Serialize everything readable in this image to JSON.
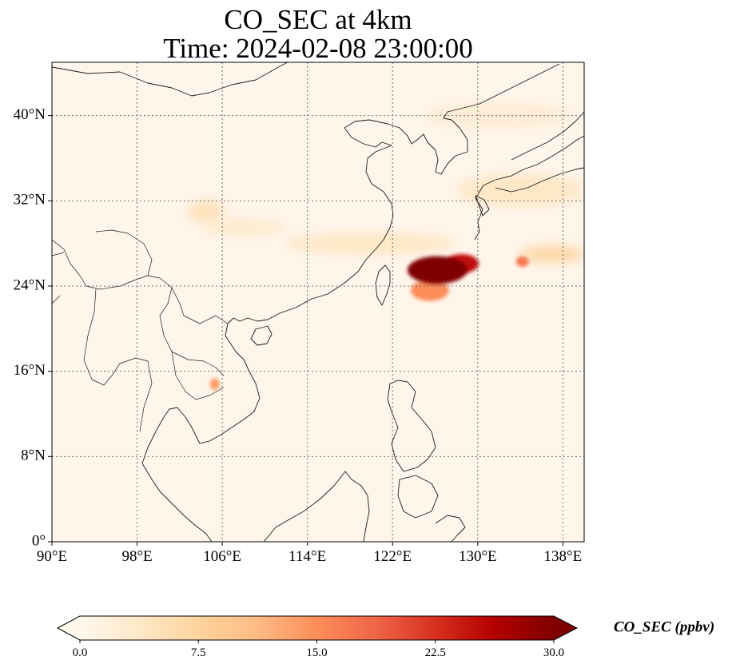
{
  "title": {
    "line1": "CO_SEC at 4km",
    "line2": "Time: 2024-02-08 23:00:00"
  },
  "map": {
    "lon_range": [
      90,
      140
    ],
    "lat_range": [
      0,
      45
    ],
    "lon_ticks": [
      {
        "value": 90,
        "label": "90°E"
      },
      {
        "value": 98,
        "label": "98°E"
      },
      {
        "value": 106,
        "label": "106°E"
      },
      {
        "value": 114,
        "label": "114°E"
      },
      {
        "value": 122,
        "label": "122°E"
      },
      {
        "value": 130,
        "label": "130°E"
      },
      {
        "value": 138,
        "label": "138°E"
      }
    ],
    "lat_ticks": [
      {
        "value": 0,
        "label": "0°"
      },
      {
        "value": 8,
        "label": "8°N"
      },
      {
        "value": 16,
        "label": "16°N"
      },
      {
        "value": 24,
        "label": "24°N"
      },
      {
        "value": 32,
        "label": "32°N"
      },
      {
        "value": 40,
        "label": "40°N"
      }
    ],
    "gridlines": true,
    "background_color": "#fff5eb",
    "colormap": "OrRd",
    "plumes": [
      {
        "lon": 126.2,
        "lat": 25.5,
        "rx": 2.8,
        "ry": 1.3,
        "value": 30
      },
      {
        "lon": 128.5,
        "lat": 26.1,
        "rx": 1.6,
        "ry": 0.9,
        "value": 25
      },
      {
        "lon": 125.5,
        "lat": 23.6,
        "rx": 1.8,
        "ry": 1.0,
        "value": 15
      },
      {
        "lon": 134.2,
        "lat": 26.3,
        "rx": 0.6,
        "ry": 0.5,
        "value": 17
      },
      {
        "lon": 105.3,
        "lat": 14.8,
        "rx": 0.45,
        "ry": 0.55,
        "value": 14
      },
      {
        "lon": 137.0,
        "lat": 27.0,
        "rx": 3.0,
        "ry": 0.8,
        "value": 7
      },
      {
        "lon": 134.0,
        "lat": 33.0,
        "rx": 6.0,
        "ry": 1.5,
        "value": 4
      },
      {
        "lon": 120.0,
        "lat": 28.0,
        "rx": 8.0,
        "ry": 1.0,
        "value": 4
      },
      {
        "lon": 104.5,
        "lat": 31.0,
        "rx": 1.7,
        "ry": 1.0,
        "value": 5
      },
      {
        "lon": 108.0,
        "lat": 29.5,
        "rx": 4.0,
        "ry": 0.8,
        "value": 3
      },
      {
        "lon": 132.0,
        "lat": 40.0,
        "rx": 7.0,
        "ry": 1.2,
        "value": 2.5
      }
    ]
  },
  "colorbar": {
    "label": "CO_SEC (ppbv)",
    "min": 0.0,
    "max": 30.0,
    "ticks": [
      {
        "value": 0,
        "label": "0.0"
      },
      {
        "value": 7.5,
        "label": "7.5"
      },
      {
        "value": 15,
        "label": "15.0"
      },
      {
        "value": 22.5,
        "label": "22.5"
      },
      {
        "value": 30,
        "label": "30.0"
      }
    ],
    "colors": [
      "#fff7ec",
      "#fee8c8",
      "#fdd49e",
      "#fdbb84",
      "#fc8d59",
      "#ef6548",
      "#d7301f",
      "#b30000",
      "#7f0000"
    ]
  }
}
